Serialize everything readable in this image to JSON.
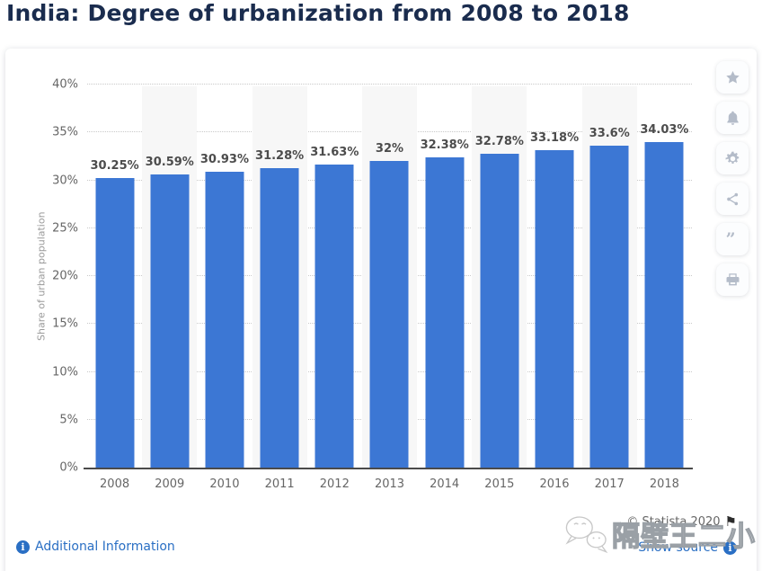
{
  "page": {
    "title": "India: Degree of urbanization from 2008 to 2018"
  },
  "chart_data": {
    "type": "bar",
    "title": "India: Degree of urbanization from 2008 to 2018",
    "categories": [
      "2008",
      "2009",
      "2010",
      "2011",
      "2012",
      "2013",
      "2014",
      "2015",
      "2016",
      "2017",
      "2018"
    ],
    "values": [
      30.25,
      30.59,
      30.93,
      31.28,
      31.63,
      32,
      32.38,
      32.78,
      33.18,
      33.6,
      34.03
    ],
    "value_labels": [
      "30.25%",
      "30.59%",
      "30.93%",
      "31.28%",
      "31.63%",
      "32%",
      "32.38%",
      "32.78%",
      "33.18%",
      "33.6%",
      "34.03%"
    ],
    "xlabel": "",
    "ylabel": "Share of urban population",
    "ylim": [
      0,
      40
    ],
    "yticks": [
      0,
      5,
      10,
      15,
      20,
      25,
      30,
      35,
      40
    ],
    "ytick_labels": [
      "0%",
      "5%",
      "10%",
      "15%",
      "20%",
      "25%",
      "30%",
      "35%",
      "40%"
    ],
    "grid": "horizontal dotted gridlines on",
    "legend": "none",
    "bar_color": "#3c77d4",
    "band_color": "#f7f7f7",
    "banded_columns": [
      1,
      3,
      5,
      7,
      9
    ]
  },
  "toolbar": {
    "buttons": [
      {
        "button": "favorite-button",
        "icon": "star-icon"
      },
      {
        "button": "alerts-button",
        "icon": "bell-icon"
      },
      {
        "button": "settings-button",
        "icon": "gear-icon"
      },
      {
        "button": "share-button",
        "icon": "share-icon"
      },
      {
        "button": "citation-button",
        "icon": "quote-icon"
      },
      {
        "button": "print-button",
        "icon": "print-icon"
      }
    ]
  },
  "footer": {
    "additional_information_label": "Additional Information",
    "copyright": "© Statista 2020",
    "flag_glyph": "⚑",
    "info_glyph": "i",
    "show_source_label": "Show source"
  },
  "watermark": {
    "text": "隔壁王二小",
    "logo": "wechat-logo"
  },
  "colors": {
    "title": "#1a2c4e",
    "bar": "#3c77d4",
    "link": "#2a6fc4",
    "axis_text": "#666666",
    "value_label": "#4c4c4c"
  }
}
